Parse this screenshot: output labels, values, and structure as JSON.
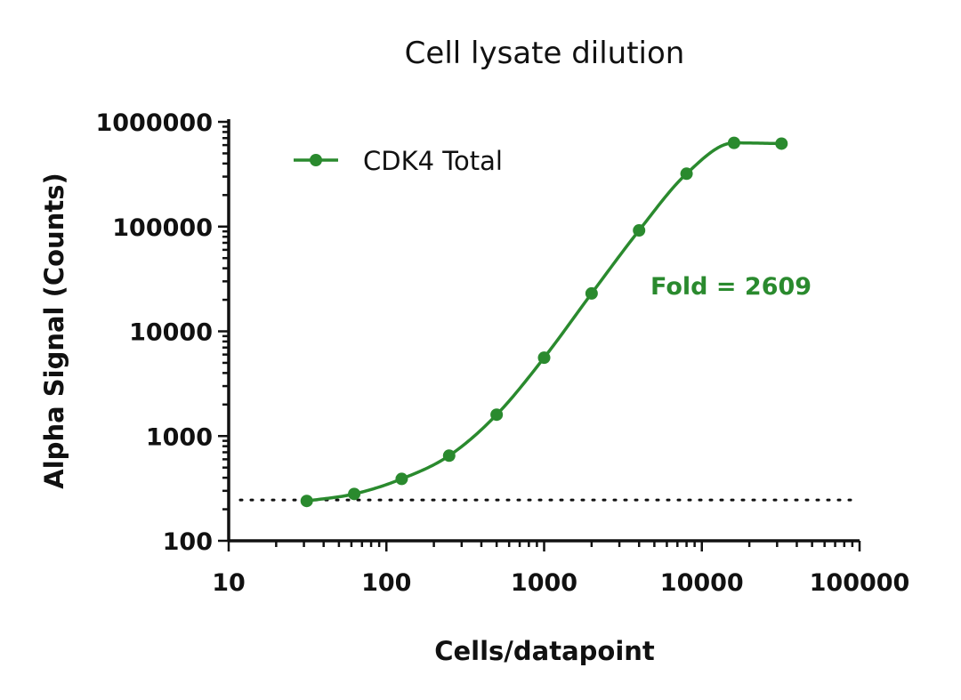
{
  "chart_data": {
    "type": "scatter",
    "title": "Cell lysate dilution",
    "xlabel": "Cells/datapoint",
    "ylabel": "Alpha Signal (Counts)",
    "x_scale": "log",
    "y_scale": "log",
    "xlim": [
      10,
      100000
    ],
    "ylim": [
      100,
      1000000
    ],
    "x_tick_labels": [
      "10",
      "100",
      "1000",
      "10000",
      "100000"
    ],
    "y_tick_labels": [
      "100",
      "1000",
      "10000",
      "100000",
      "1000000"
    ],
    "legend_position": "top-left",
    "grid": false,
    "series": [
      {
        "name": "CDK4 Total",
        "color": "#2a8a2e",
        "marker": "circle",
        "fit_line": "sigmoidal",
        "x": [
          31.25,
          62.5,
          125,
          250,
          500,
          1000,
          2000,
          4000,
          8000,
          16000,
          32000
        ],
        "y": [
          240,
          280,
          390,
          650,
          1600,
          5600,
          23000,
          92000,
          320000,
          630000,
          620000
        ]
      }
    ],
    "baseline": {
      "y": 245,
      "style": "dotted",
      "color": "#111111"
    },
    "annotations": [
      {
        "text": "Fold = 2609",
        "color": "#2a8a2e"
      }
    ]
  }
}
